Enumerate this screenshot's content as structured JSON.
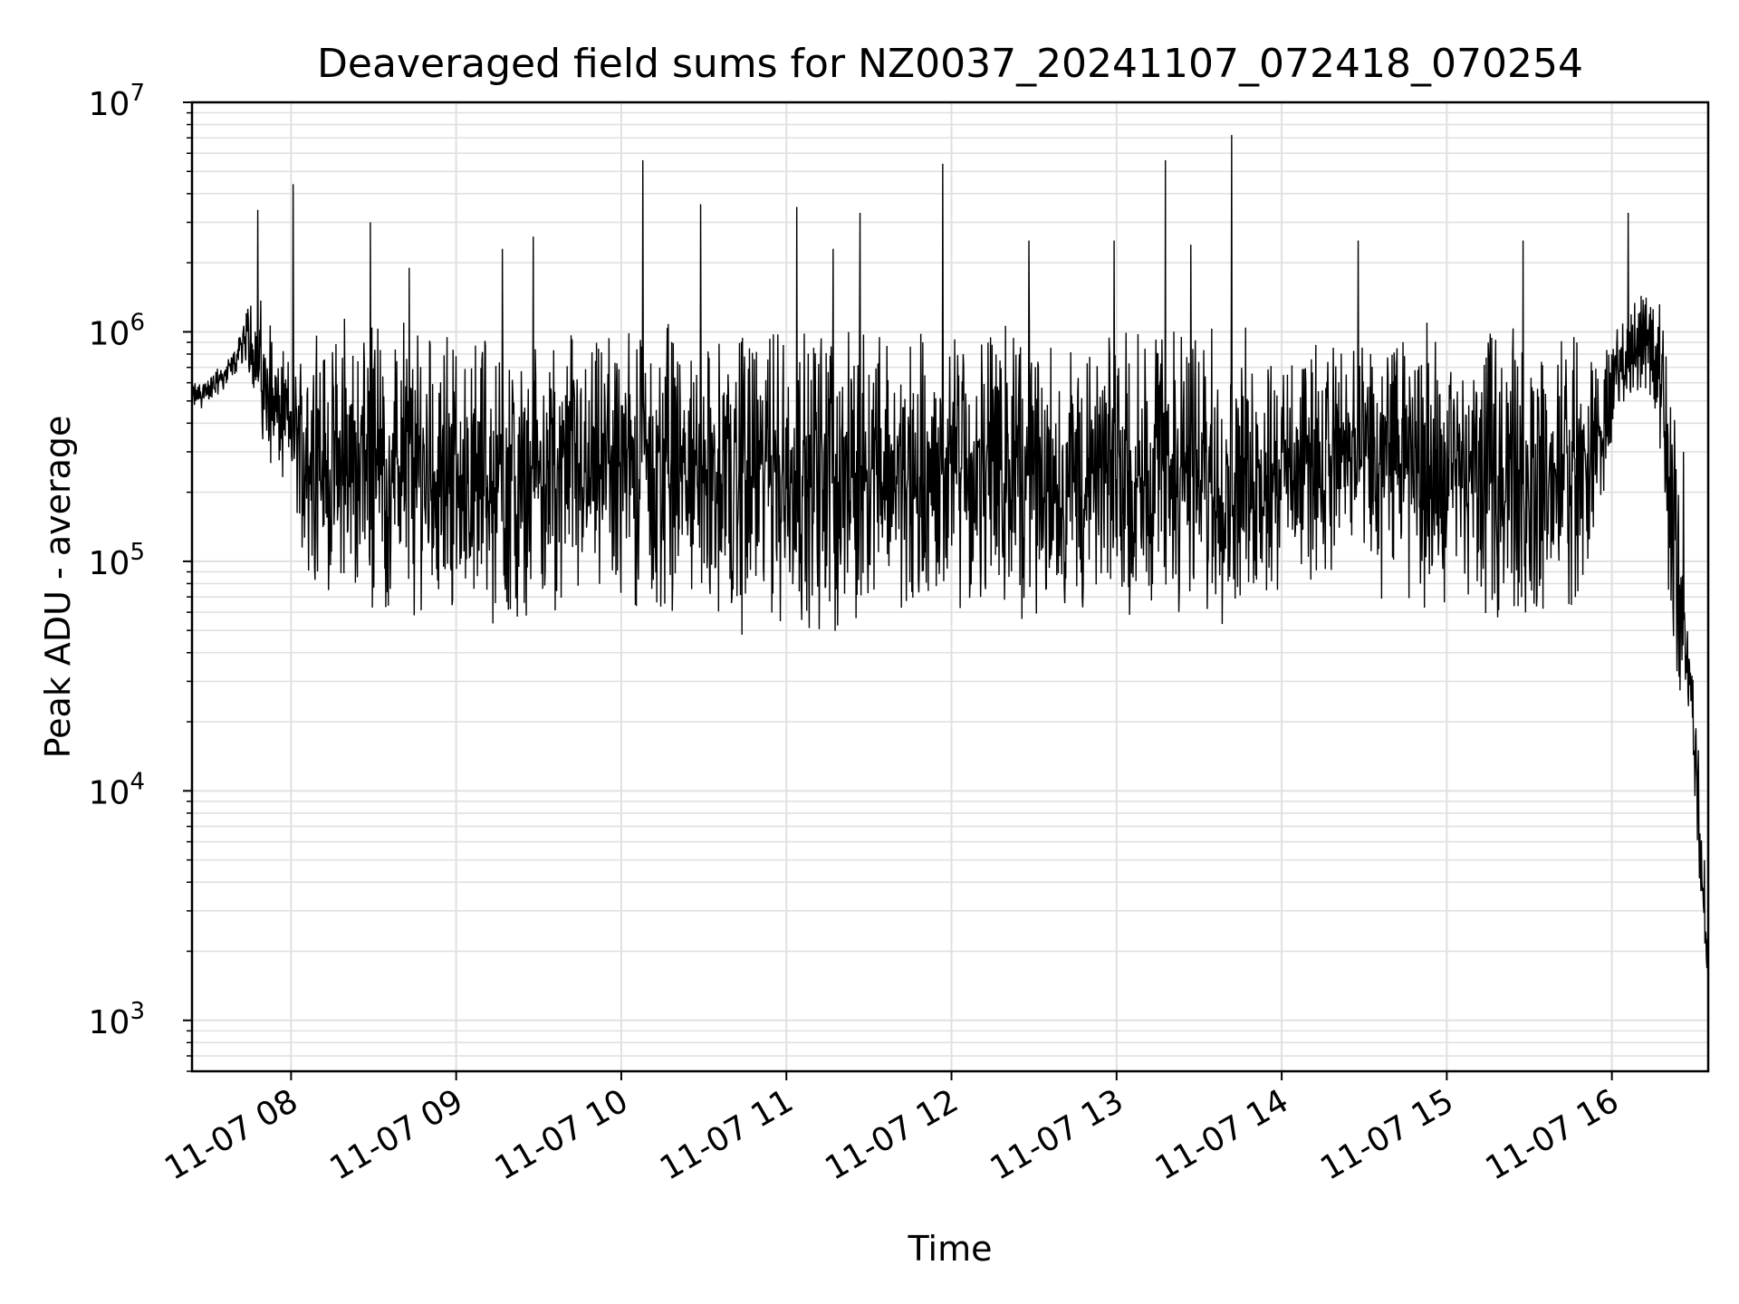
{
  "chart_data": {
    "type": "line",
    "title": "Deaveraged field sums for NZ0037_20241107_072418_070254",
    "xlabel": "Time",
    "ylabel": "Peak ADU - average",
    "yscale": "log",
    "xlim": [
      "11-07 07:24",
      "11-07 16:35"
    ],
    "ylim": [
      600,
      10000000
    ],
    "grid": true,
    "colors": {
      "line": "#000000",
      "grid": "#e0e0e0",
      "axes": "#000000",
      "background": "#ffffff"
    },
    "x_ticks": [
      "11-07 08",
      "11-07 09",
      "11-07 10",
      "11-07 11",
      "11-07 12",
      "11-07 13",
      "11-07 14",
      "11-07 15",
      "11-07 16"
    ],
    "y_ticks": [
      {
        "base": "10",
        "exp": "3"
      },
      {
        "base": "10",
        "exp": "4"
      },
      {
        "base": "10",
        "exp": "5"
      },
      {
        "base": "10",
        "exp": "6"
      },
      {
        "base": "10",
        "exp": "7"
      }
    ],
    "series": [
      {
        "x": [
          "07:24",
          "07:29",
          "07:34",
          "07:39",
          "07:44",
          "07:47",
          "07:49",
          "07:51",
          "07:54",
          "07:57",
          "08:00",
          "08:06",
          "08:12",
          "08:20",
          "08:30",
          "08:40",
          "08:50",
          "09:00",
          "09:10",
          "09:20",
          "09:30",
          "09:40",
          "09:50",
          "10:00",
          "10:10",
          "10:20",
          "10:30",
          "10:40",
          "10:50",
          "11:00",
          "11:10",
          "11:20",
          "11:30",
          "11:40",
          "11:50",
          "12:00",
          "12:10",
          "12:20",
          "12:30",
          "12:40",
          "12:50",
          "13:00",
          "13:10",
          "13:20",
          "13:30",
          "13:40",
          "13:50",
          "14:00",
          "14:10",
          "14:20",
          "14:30",
          "14:40",
          "14:50",
          "15:00",
          "15:10",
          "15:20",
          "15:30",
          "15:40",
          "15:50",
          "15:58",
          "16:02",
          "16:07",
          "16:12",
          "16:15",
          "16:18",
          "16:21",
          "16:23",
          "16:25",
          "16:27",
          "16:29",
          "16:31",
          "16:33",
          "16:35"
        ],
        "low": [
          440000,
          470000,
          520000,
          620000,
          700000,
          500000,
          320000,
          260000,
          230000,
          200000,
          180000,
          90000,
          70000,
          60000,
          60000,
          55000,
          55000,
          55000,
          55000,
          45000,
          50000,
          55000,
          60000,
          60000,
          50000,
          55000,
          55000,
          45000,
          48000,
          50000,
          45000,
          50000,
          60000,
          55000,
          50000,
          55000,
          55000,
          50000,
          50000,
          55000,
          50000,
          55000,
          55000,
          55000,
          50000,
          52000,
          60000,
          70000,
          80000,
          80000,
          70000,
          65000,
          60000,
          55000,
          55000,
          55000,
          50000,
          55000,
          60000,
          220000,
          480000,
          500000,
          500000,
          350000,
          150000,
          60000,
          30000,
          23000,
          22000,
          18000,
          3500,
          1800,
          1500
        ],
        "high": [
          620000,
          650000,
          720000,
          850000,
          1300000,
          1700000,
          1500000,
          1200000,
          950000,
          900000,
          850000,
          1000000,
          1100000,
          1150000,
          1200000,
          1150000,
          1100000,
          1050000,
          1100000,
          1000000,
          1050000,
          1100000,
          1000000,
          1050000,
          1100000,
          1100000,
          1050000,
          1100000,
          1100000,
          1100000,
          1150000,
          1100000,
          1100000,
          1050000,
          1100000,
          1100000,
          1050000,
          1100000,
          1050000,
          1100000,
          1050000,
          1100000,
          1150000,
          1100000,
          1100000,
          1050000,
          1050000,
          900000,
          850000,
          1000000,
          1050000,
          1050000,
          1100000,
          1100000,
          1050000,
          1050000,
          1050000,
          1000000,
          1050000,
          1000000,
          1100000,
          1300000,
          1600000,
          1700000,
          1300000,
          900000,
          400000,
          160000,
          60000,
          38000,
          32000,
          8000,
          2500
        ],
        "spikes": [
          {
            "x": "07:48",
            "y": 3400000
          },
          {
            "x": "08:01",
            "y": 4400000
          },
          {
            "x": "08:29",
            "y": 3000000
          },
          {
            "x": "08:43",
            "y": 1900000
          },
          {
            "x": "09:17",
            "y": 2300000
          },
          {
            "x": "09:28",
            "y": 2600000
          },
          {
            "x": "10:08",
            "y": 5600000
          },
          {
            "x": "10:29",
            "y": 3600000
          },
          {
            "x": "11:04",
            "y": 3500000
          },
          {
            "x": "11:17",
            "y": 2300000
          },
          {
            "x": "11:27",
            "y": 3300000
          },
          {
            "x": "11:57",
            "y": 5400000
          },
          {
            "x": "12:28",
            "y": 2500000
          },
          {
            "x": "12:59",
            "y": 2500000
          },
          {
            "x": "13:18",
            "y": 5600000
          },
          {
            "x": "13:27",
            "y": 2400000
          },
          {
            "x": "13:42",
            "y": 7200000
          },
          {
            "x": "14:28",
            "y": 2500000
          },
          {
            "x": "15:28",
            "y": 2500000
          },
          {
            "x": "16:06",
            "y": 3300000
          },
          {
            "x": "16:26",
            "y": 300000
          }
        ]
      }
    ]
  }
}
